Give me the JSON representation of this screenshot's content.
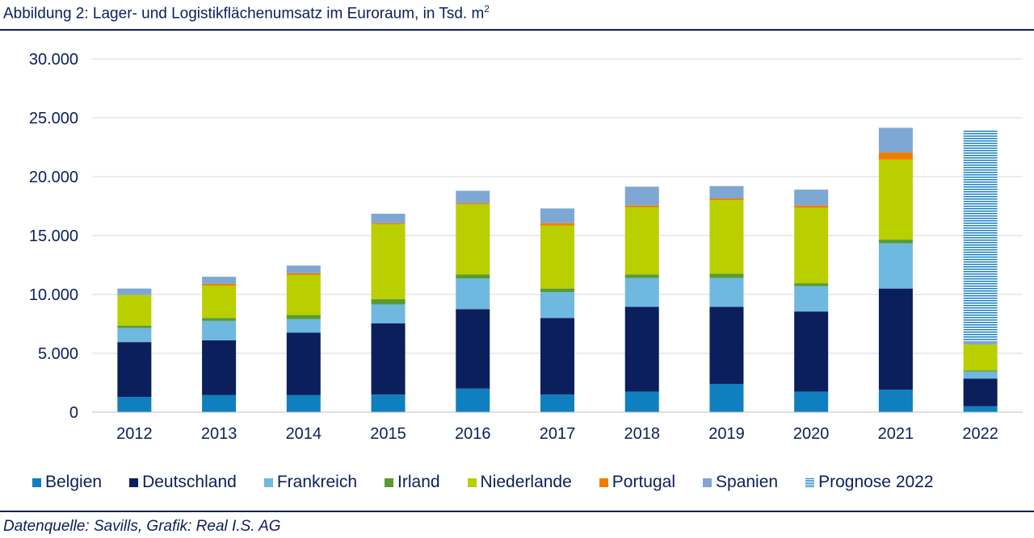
{
  "title_main": "Abbildung 2: Lager- und Logistikflächenumsatz im Euroraum, in Tsd. m",
  "title_sup": "2",
  "source": "Datenquelle: Savills, Grafik: Real I.S. AG",
  "chart_data": {
    "type": "bar",
    "stacked": true,
    "categories": [
      "2012",
      "2013",
      "2014",
      "2015",
      "2016",
      "2017",
      "2018",
      "2019",
      "2020",
      "2021",
      "2022"
    ],
    "ylim": [
      0,
      30000
    ],
    "yticks": [
      0,
      5000,
      10000,
      15000,
      20000,
      25000,
      30000
    ],
    "ytick_labels": [
      "0",
      "5.000",
      "10.000",
      "15.000",
      "20.000",
      "25.000",
      "30.000"
    ],
    "grid": true,
    "legend_position": "bottom",
    "series": [
      {
        "name": "Belgien",
        "color": "#0f7fbf",
        "values": [
          1300,
          1450,
          1450,
          1500,
          2000,
          1500,
          1750,
          2400,
          1750,
          1900,
          500
        ]
      },
      {
        "name": "Deutschland",
        "color": "#0a1f5c",
        "values": [
          4650,
          4650,
          5300,
          6050,
          6750,
          6500,
          7200,
          6550,
          6800,
          8600,
          2350
        ]
      },
      {
        "name": "Frankreich",
        "color": "#6fb8e0",
        "values": [
          1200,
          1650,
          1150,
          1600,
          2600,
          2200,
          2450,
          2450,
          2150,
          3850,
          600
        ]
      },
      {
        "name": "Irland",
        "color": "#5a9a32",
        "values": [
          200,
          250,
          350,
          450,
          350,
          300,
          300,
          350,
          250,
          300,
          100
        ]
      },
      {
        "name": "Niederlande",
        "color": "#b9cf00",
        "values": [
          2600,
          2750,
          3400,
          6350,
          5950,
          5350,
          5700,
          6250,
          6400,
          6800,
          2200
        ]
      },
      {
        "name": "Portugal",
        "color": "#f07d00",
        "values": [
          0,
          150,
          150,
          100,
          100,
          200,
          150,
          150,
          200,
          600,
          0
        ]
      },
      {
        "name": "Spanien",
        "color": "#7fa7d3",
        "values": [
          550,
          600,
          650,
          800,
          1050,
          1250,
          1600,
          1050,
          1350,
          2100,
          300
        ]
      },
      {
        "name": "Prognose 2022",
        "color": "hatched-blue",
        "values": [
          0,
          0,
          0,
          0,
          0,
          0,
          0,
          0,
          0,
          0,
          17900
        ]
      }
    ]
  }
}
